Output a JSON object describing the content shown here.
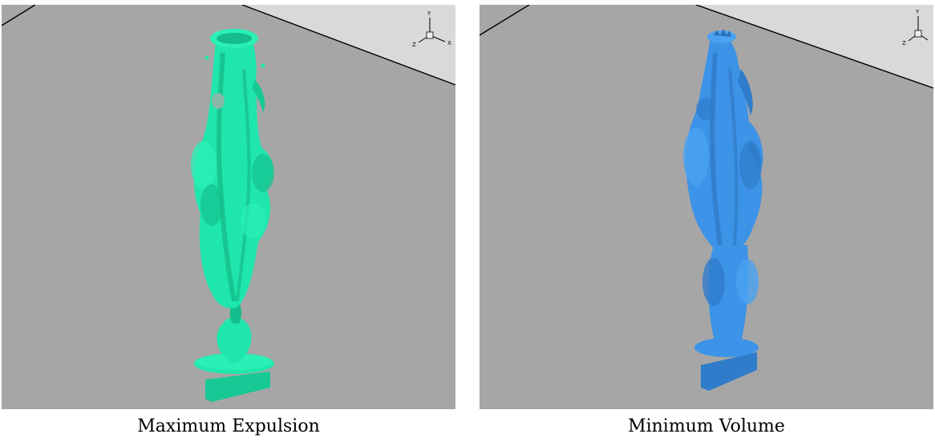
{
  "panels": [
    {
      "caption": "Maximum Expulsion",
      "surface_color": "#1ee6ac",
      "axes_labels": {
        "y": "Y",
        "z": "Z",
        "x": "X"
      }
    },
    {
      "caption": "Minimum Volume",
      "surface_color": "#3c93e8",
      "axes_labels": {
        "y": "Y",
        "z": "Z",
        "x": "X"
      }
    }
  ],
  "colors": {
    "floor": "#a6a6a6",
    "wall": "#d9d9d9",
    "edge": "#000000"
  }
}
